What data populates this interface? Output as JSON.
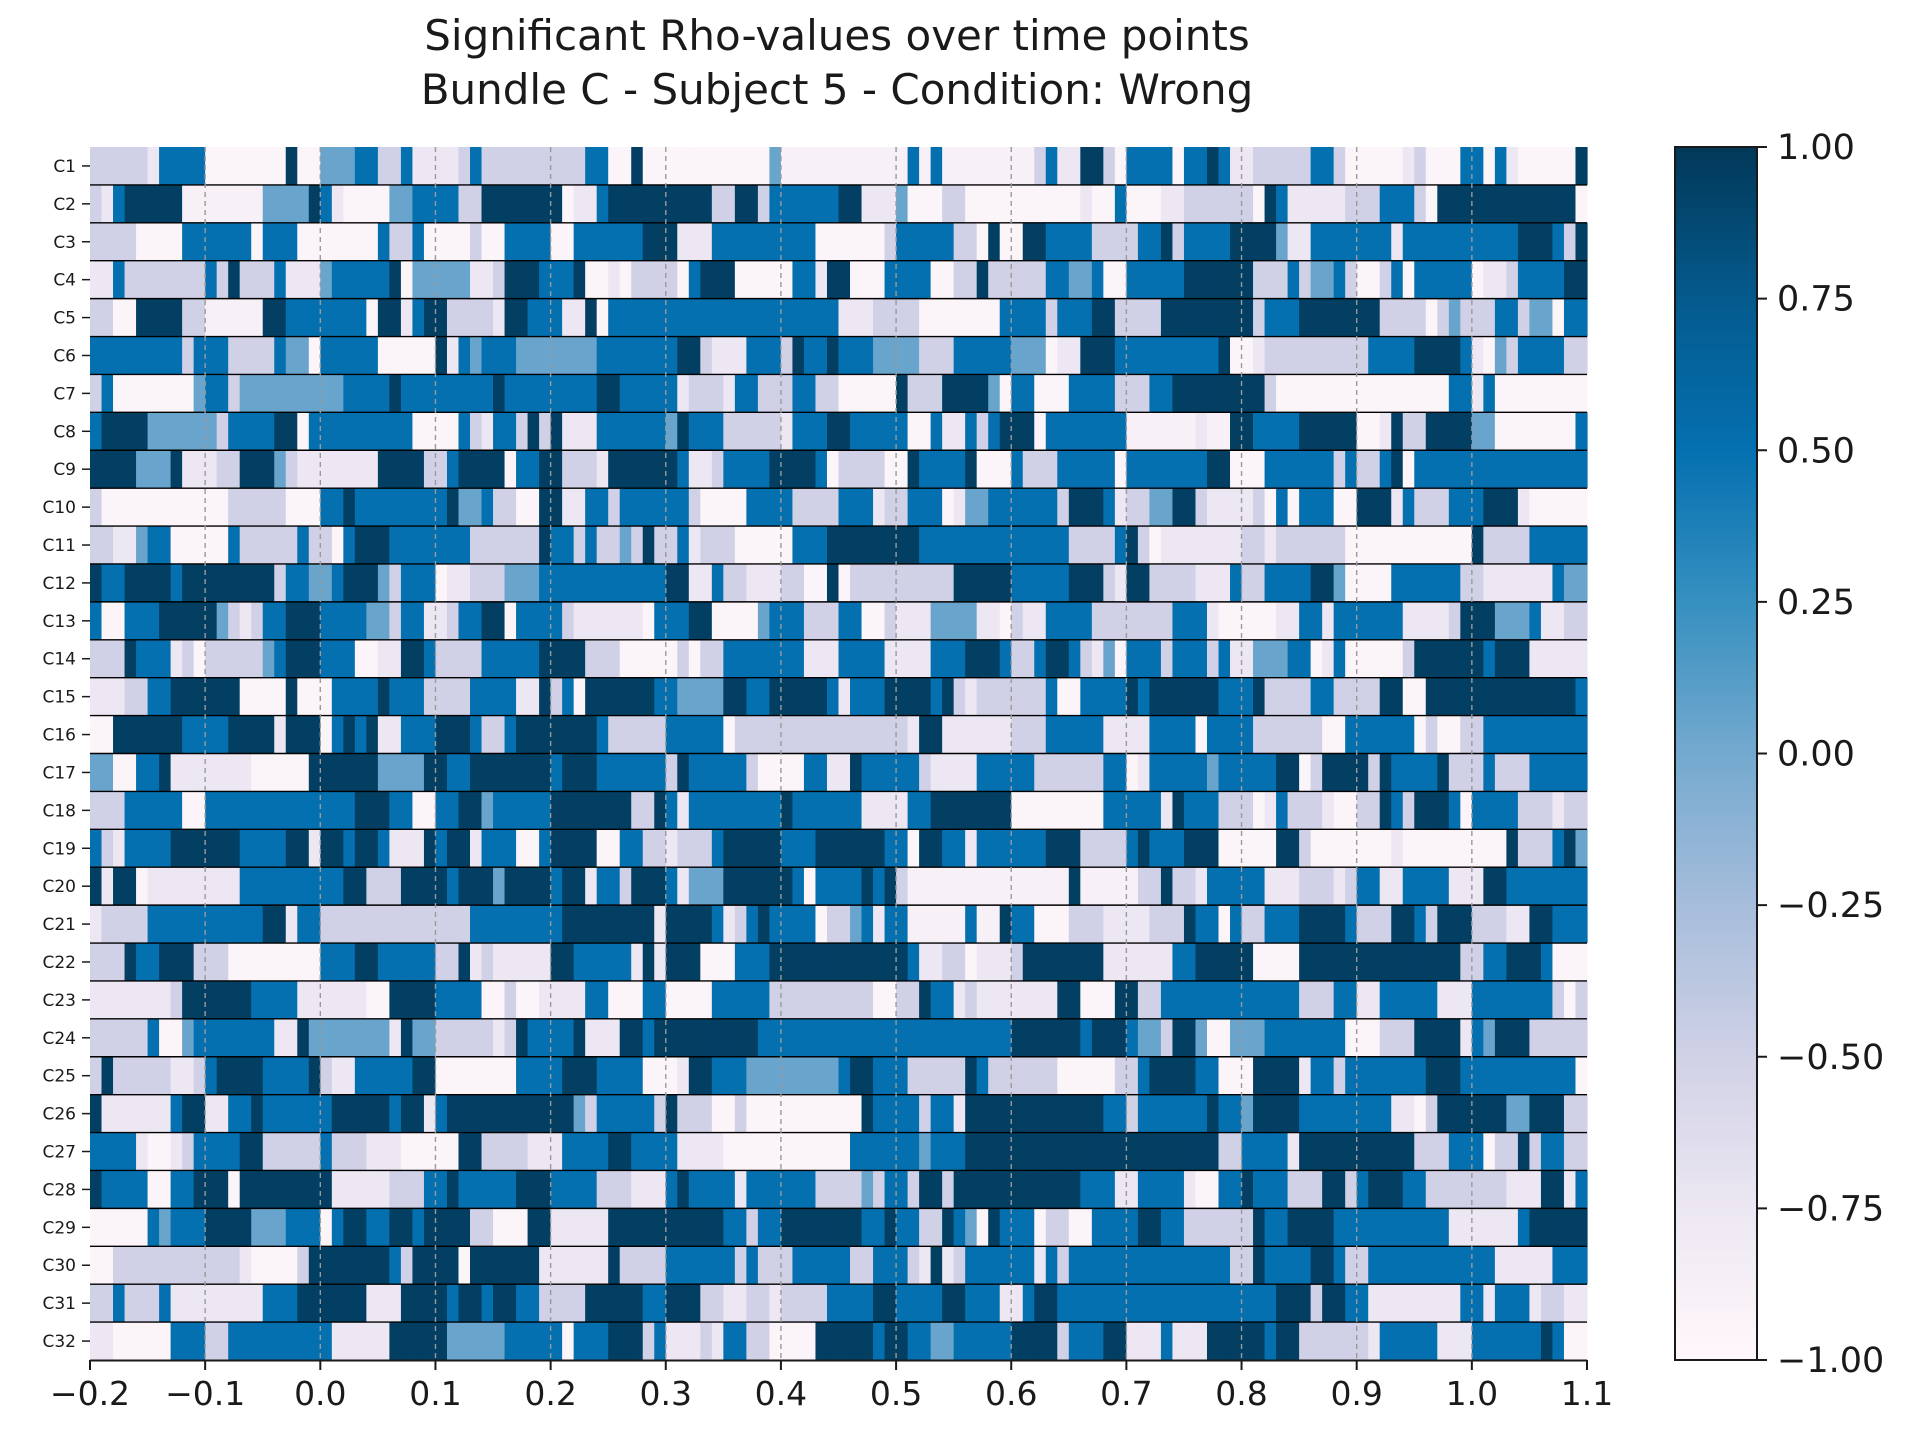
{
  "chart_data": {
    "type": "heatmap",
    "title_lines": [
      "Significant Rho-values over time points",
      "Bundle C - Subject 5 - Condition: Wrong"
    ],
    "xlabel": "",
    "ylabel": "",
    "xlim": [
      -0.2,
      1.1
    ],
    "x_ticks": [
      -0.2,
      -0.1,
      0.0,
      0.1,
      0.2,
      0.3,
      0.4,
      0.5,
      0.6,
      0.7,
      0.8,
      0.9,
      1.0,
      1.1
    ],
    "x_tick_labels": [
      "−0.2",
      "−0.1",
      "0.0",
      "0.1",
      "0.2",
      "0.3",
      "0.4",
      "0.5",
      "0.6",
      "0.7",
      "0.8",
      "0.9",
      "1.0",
      "1.1"
    ],
    "rows": [
      "C1",
      "C2",
      "C3",
      "C4",
      "C5",
      "C6",
      "C7",
      "C8",
      "C9",
      "C10",
      "C11",
      "C12",
      "C13",
      "C14",
      "C15",
      "C16",
      "C17",
      "C18",
      "C19",
      "C20",
      "C21",
      "C22",
      "C23",
      "C24",
      "C25",
      "C26",
      "C27",
      "C28",
      "C29",
      "C30",
      "C31",
      "C32"
    ],
    "vertical_gridlines_at": [
      -0.1,
      0.0,
      0.1,
      0.2,
      0.3,
      0.4,
      0.5,
      0.6,
      0.7,
      0.8,
      0.9,
      1.0
    ],
    "time_bins": 130,
    "colorbar": {
      "range": [
        -1.0,
        1.0
      ],
      "ticks": [
        1.0,
        0.75,
        0.5,
        0.25,
        0.0,
        -0.25,
        -0.5,
        -0.75,
        -1.0
      ],
      "tick_labels": [
        "1.00",
        "0.75",
        "0.50",
        "0.25",
        "0.00",
        "−0.25",
        "−0.50",
        "−0.75",
        "−1.00"
      ],
      "colormap": "PuBu",
      "stops": [
        {
          "v": -1.0,
          "color": "#fff7fb"
        },
        {
          "v": -0.75,
          "color": "#ece7f2"
        },
        {
          "v": -0.5,
          "color": "#d0d1e6"
        },
        {
          "v": -0.25,
          "color": "#a6bddb"
        },
        {
          "v": 0.0,
          "color": "#74a9cf"
        },
        {
          "v": 0.25,
          "color": "#3690c0"
        },
        {
          "v": 0.5,
          "color": "#0570b0"
        },
        {
          "v": 0.75,
          "color": "#045a8d"
        },
        {
          "v": 1.0,
          "color": "#023858"
        }
      ]
    },
    "value_levels": {
      "description_of_typical_cell_values": [
        -0.95,
        -0.75,
        -0.5,
        0.05,
        0.5,
        0.95
      ],
      "dominant_high_value_regions": {
        "C14": [
          [
            0.95,
            1.05
          ]
        ],
        "C15": [
          [
            0.95,
            1.05
          ]
        ],
        "C26": [
          [
            0.55,
            0.65
          ]
        ],
        "C27": [
          [
            0.55,
            0.75
          ],
          [
            0.85,
            0.95
          ]
        ],
        "C25": [
          [
            -0.2,
            -0.17
          ]
        ],
        "C31": [
          [
            0.1,
            0.16
          ]
        ]
      },
      "dominant_low_value_regions": {
        "C1": [
          [
            0.4,
            0.6
          ]
        ],
        "C2": [
          [
            -0.12,
            -0.06
          ]
        ],
        "C5": [
          [
            -0.1,
            -0.05
          ]
        ],
        "C8": [
          [
            0.7,
            0.8
          ]
        ],
        "C20": [
          [
            0.5,
            0.7
          ]
        ],
        "C21": [
          [
            0.5,
            0.6
          ]
        ]
      }
    }
  }
}
